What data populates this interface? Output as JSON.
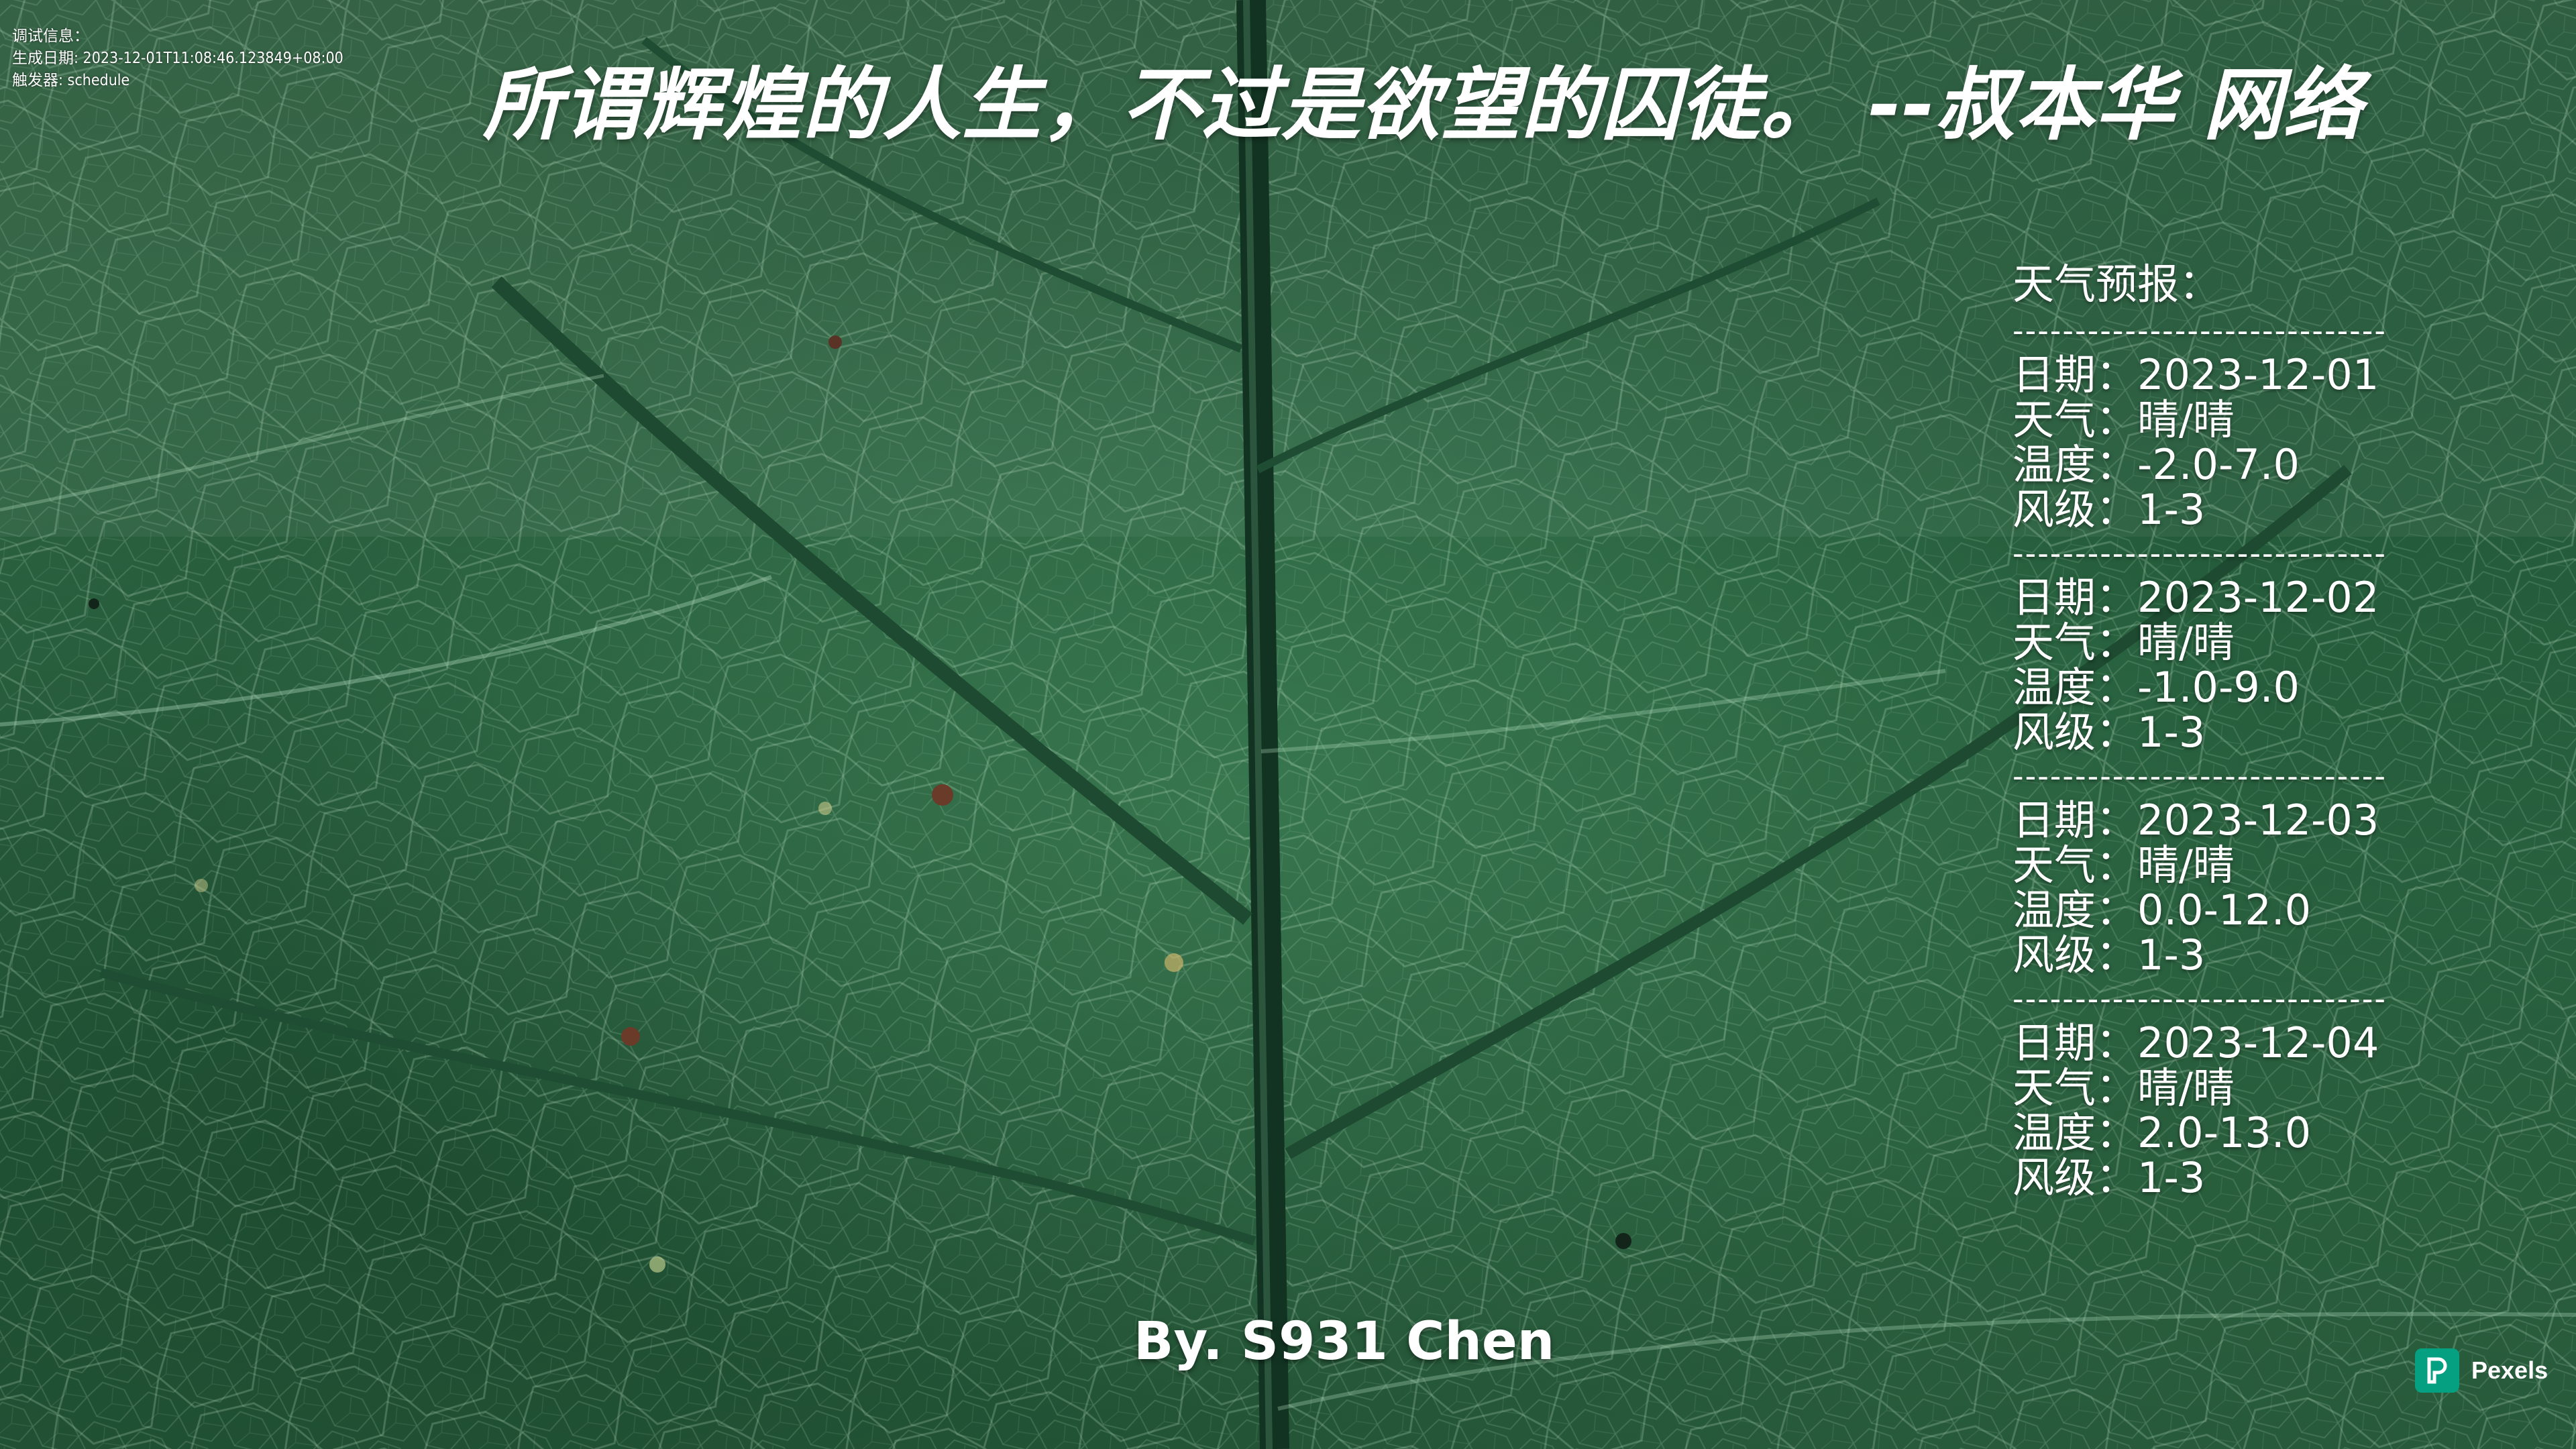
{
  "debug": {
    "label": "调试信息：",
    "generated": "生成日期: 2023-12-01T11:08:46.123849+08:00",
    "trigger": "触发器: schedule"
  },
  "quote": {
    "text": "所谓辉煌的人生，不过是欲望的囚徒。 --叔本华 网络"
  },
  "weather": {
    "title": "天气预报：",
    "separator": "------------------------------",
    "days": [
      {
        "date": "日期：2023-12-01",
        "weather": "天气：晴/晴",
        "temp": "温度：-2.0-7.0",
        "wind": "风级：1-3"
      },
      {
        "date": "日期：2023-12-02",
        "weather": "天气：晴/晴",
        "temp": "温度：-1.0-9.0",
        "wind": "风级：1-3"
      },
      {
        "date": "日期：2023-12-03",
        "weather": "天气：晴/晴",
        "temp": "温度：0.0-12.0",
        "wind": "风级：1-3"
      },
      {
        "date": "日期：2023-12-04",
        "weather": "天气：晴/晴",
        "temp": "温度：2.0-13.0",
        "wind": "风级：1-3"
      }
    ]
  },
  "signature": "By. S931 Chen",
  "watermark": {
    "icon": "pexels-logo-icon",
    "text": "Pexels",
    "color": "#05a081"
  }
}
